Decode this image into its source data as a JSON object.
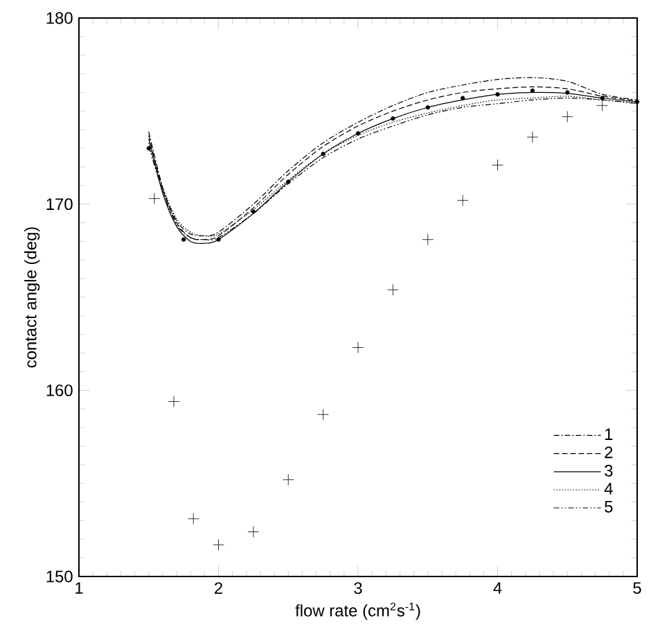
{
  "chart_data": {
    "type": "line",
    "xlabel": "flow rate (cm$^{2}$s$^{-1}$)",
    "ylabel": "contact angle (deg)",
    "xlim": [
      1,
      5
    ],
    "ylim": [
      150,
      180
    ],
    "xticks": [
      1,
      2,
      3,
      4,
      5
    ],
    "yticks": [
      150,
      160,
      170,
      180
    ],
    "grid": false,
    "legend": "bottom right",
    "series": [
      {
        "name": "1",
        "color": "#000000",
        "line_style": "dashdotted",
        "marker": "none",
        "x": [
          1.5,
          1.6,
          1.7,
          1.8,
          1.9,
          2.0,
          2.25,
          2.5,
          2.75,
          3,
          3.25,
          3.5,
          3.75,
          4,
          4.25,
          4.5,
          4.75,
          5
        ],
        "values": [
          173.9,
          170.9,
          169.1,
          168.4,
          168.3,
          168.5,
          170.0,
          171.8,
          173.3,
          174.4,
          175.3,
          176.0,
          176.4,
          176.7,
          176.8,
          176.6,
          175.9,
          175.6
        ]
      },
      {
        "name": "2",
        "color": "#000000",
        "line_style": "dashed",
        "marker": "none",
        "x": [
          1.5,
          1.6,
          1.7,
          1.8,
          1.9,
          2.0,
          2.25,
          2.5,
          2.75,
          3,
          3.25,
          3.5,
          3.75,
          4,
          4.25,
          4.5,
          4.75,
          5
        ],
        "values": [
          173.7,
          170.8,
          169.0,
          168.2,
          168.1,
          168.3,
          169.8,
          171.6,
          173.1,
          174.2,
          175.0,
          175.6,
          176.0,
          176.2,
          176.3,
          176.2,
          175.8,
          175.55
        ]
      },
      {
        "name": "3",
        "color": "#000000",
        "line_style": "solid",
        "marker": "none",
        "x": [
          1.5,
          1.6,
          1.7,
          1.8,
          1.9,
          2.0,
          2.25,
          2.5,
          2.75,
          3,
          3.25,
          3.5,
          3.75,
          4,
          4.25,
          4.5,
          4.75,
          5
        ],
        "values": [
          173.5,
          170.6,
          168.8,
          168.0,
          167.9,
          168.1,
          169.5,
          171.2,
          172.7,
          173.8,
          174.6,
          175.2,
          175.6,
          175.9,
          176.0,
          175.95,
          175.7,
          175.5
        ]
      },
      {
        "name": "4",
        "color": "#000000",
        "line_style": "dotted",
        "marker": "none",
        "x": [
          1.5,
          1.6,
          1.7,
          1.8,
          1.9,
          2.0,
          2.25,
          2.5,
          2.75,
          3,
          3.25,
          3.5,
          3.75,
          4,
          4.25,
          4.5,
          4.75,
          5
        ],
        "values": [
          173.3,
          170.9,
          169.2,
          168.5,
          168.3,
          168.4,
          169.7,
          171.3,
          172.7,
          173.7,
          174.4,
          174.9,
          175.3,
          175.6,
          175.7,
          175.8,
          175.6,
          175.45
        ]
      },
      {
        "name": "5",
        "color": "#000000",
        "line_style": "dashdotdotted",
        "marker": "none",
        "x": [
          1.5,
          1.6,
          1.7,
          1.8,
          1.9,
          2.0,
          2.25,
          2.5,
          2.75,
          3,
          3.25,
          3.5,
          3.75,
          4,
          4.25,
          4.5,
          4.75,
          5
        ],
        "values": [
          173.1,
          170.7,
          168.9,
          168.2,
          168.1,
          168.2,
          169.5,
          171.1,
          172.5,
          173.5,
          174.2,
          174.8,
          175.2,
          175.4,
          175.6,
          175.7,
          175.6,
          175.4
        ]
      },
      {
        "type": "scatter",
        "color": "#000000",
        "marker": "circle",
        "x": [
          1.5,
          1.75,
          2,
          2.25,
          2.5,
          2.75,
          3,
          3.25,
          3.5,
          3.75,
          4,
          4.25,
          4.5,
          4.75,
          5
        ],
        "values": [
          173.0,
          168.1,
          168.1,
          169.6,
          171.2,
          172.7,
          173.8,
          174.6,
          175.2,
          175.7,
          175.9,
          176.1,
          176.0,
          175.7,
          175.5
        ]
      },
      {
        "type": "scatter",
        "color": "#000000",
        "marker": "cross",
        "x": [
          1.54,
          1.68,
          1.82,
          2.0,
          2.25,
          2.5,
          2.75,
          3.0,
          3.25,
          3.5,
          3.75,
          4.0,
          4.25,
          4.5,
          4.75
        ],
        "values": [
          170.3,
          159.4,
          153.1,
          151.7,
          152.4,
          155.2,
          158.7,
          162.3,
          165.4,
          168.1,
          170.2,
          172.1,
          173.6,
          174.7,
          175.3
        ]
      }
    ]
  }
}
